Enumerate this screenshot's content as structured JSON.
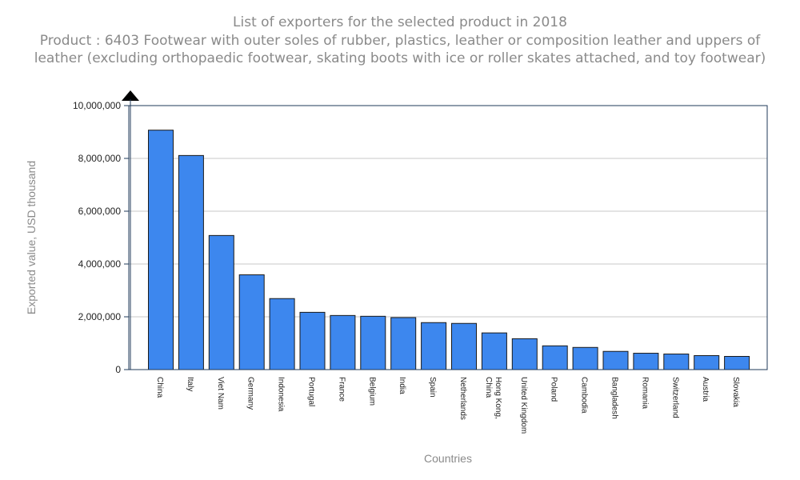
{
  "chart_data": {
    "type": "bar",
    "title": "List of exporters for the selected product in 2018",
    "subtitle": "Product : 6403 Footwear with outer soles of rubber, plastics, leather or composition leather and uppers of leather (excluding orthopaedic footwear, skating boots with ice or roller skates attached, and toy footwear)",
    "xlabel": "Countries",
    "ylabel": "Exported value, USD thousand",
    "ylim": [
      0,
      10000000
    ],
    "yticks": [
      0,
      2000000,
      4000000,
      6000000,
      8000000,
      10000000
    ],
    "ytick_labels": [
      "0",
      "2,000,000",
      "4,000,000",
      "6,000,000",
      "8,000,000",
      "10,000,000"
    ],
    "grid": true,
    "bar_color": "#3d87ee",
    "categories": [
      "China",
      "Italy",
      "Viet Nam",
      "Germany",
      "Indonesia",
      "Portugal",
      "France",
      "Belgium",
      "India",
      "Spain",
      "Netherlands",
      "Hong Kong, China",
      "United Kingdom",
      "Poland",
      "Cambodia",
      "Bangladesh",
      "Romania",
      "Switzerland",
      "Austria",
      "Slovakia"
    ],
    "values": [
      9070000,
      8110000,
      5080000,
      3590000,
      2690000,
      2170000,
      2050000,
      2020000,
      1970000,
      1780000,
      1750000,
      1390000,
      1170000,
      900000,
      840000,
      690000,
      620000,
      590000,
      530000,
      500000
    ]
  }
}
